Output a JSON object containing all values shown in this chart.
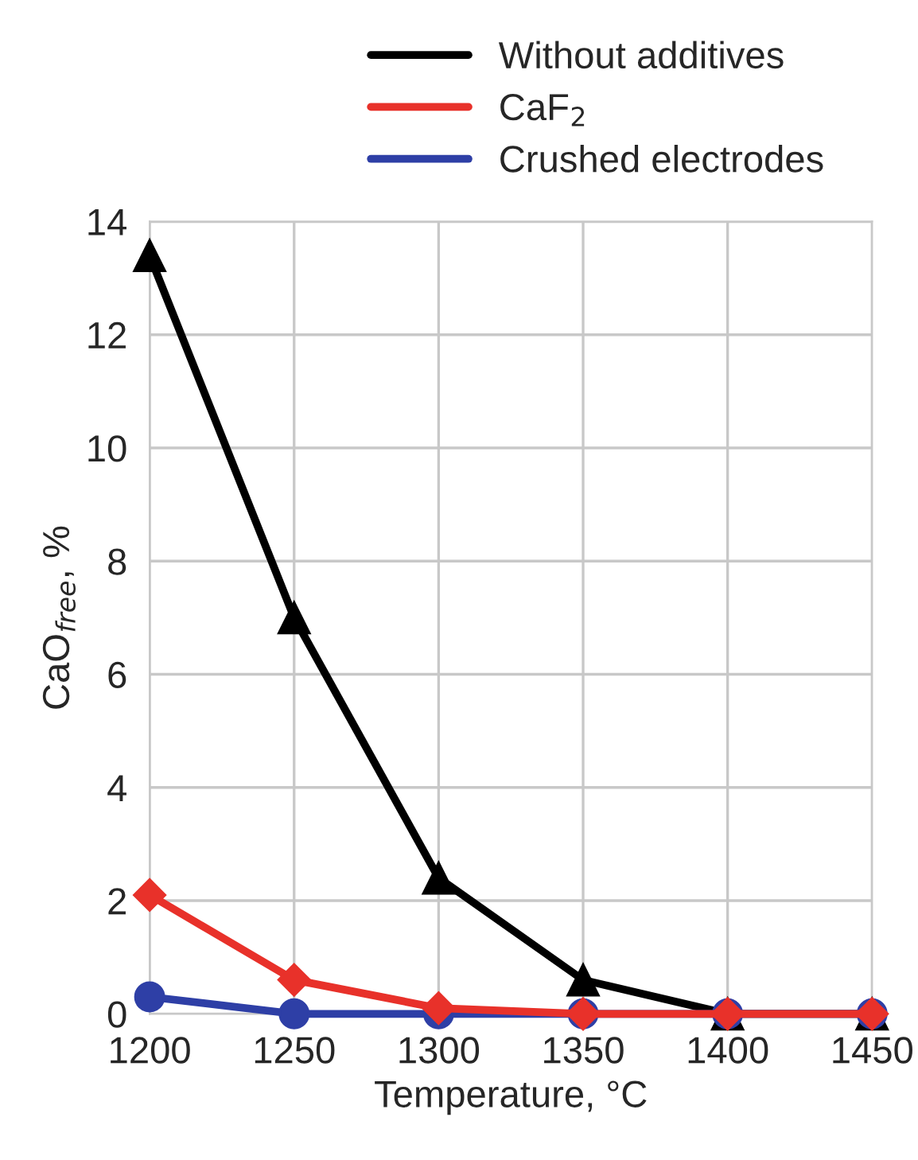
{
  "chart_data": {
    "type": "line",
    "xlabel": "Temperature, °C",
    "ylabel": "CaO$_{free}$, %",
    "x": [
      1200,
      1250,
      1300,
      1350,
      1400,
      1450
    ],
    "series": [
      {
        "name": "Without additives",
        "color": "#000000",
        "marker": "triangle",
        "values": [
          13.4,
          7.0,
          2.4,
          0.6,
          0,
          0
        ]
      },
      {
        "name": "CaF$_{2}$",
        "color": "#e8312a",
        "marker": "diamond",
        "values": [
          2.1,
          0.6,
          0.1,
          0,
          0,
          0
        ]
      },
      {
        "name": "Crushed electrodes",
        "color": "#2e3fa6",
        "marker": "circle",
        "values": [
          0.3,
          0,
          0,
          0,
          0,
          0
        ]
      }
    ],
    "xlim": [
      1200,
      1450
    ],
    "xticks": [
      1200,
      1250,
      1300,
      1350,
      1400,
      1450
    ],
    "ylim": [
      0,
      14
    ],
    "yticks": [
      0,
      2,
      4,
      6,
      8,
      10,
      12,
      14
    ],
    "grid": true,
    "legend": "top",
    "line_style": "solid"
  }
}
